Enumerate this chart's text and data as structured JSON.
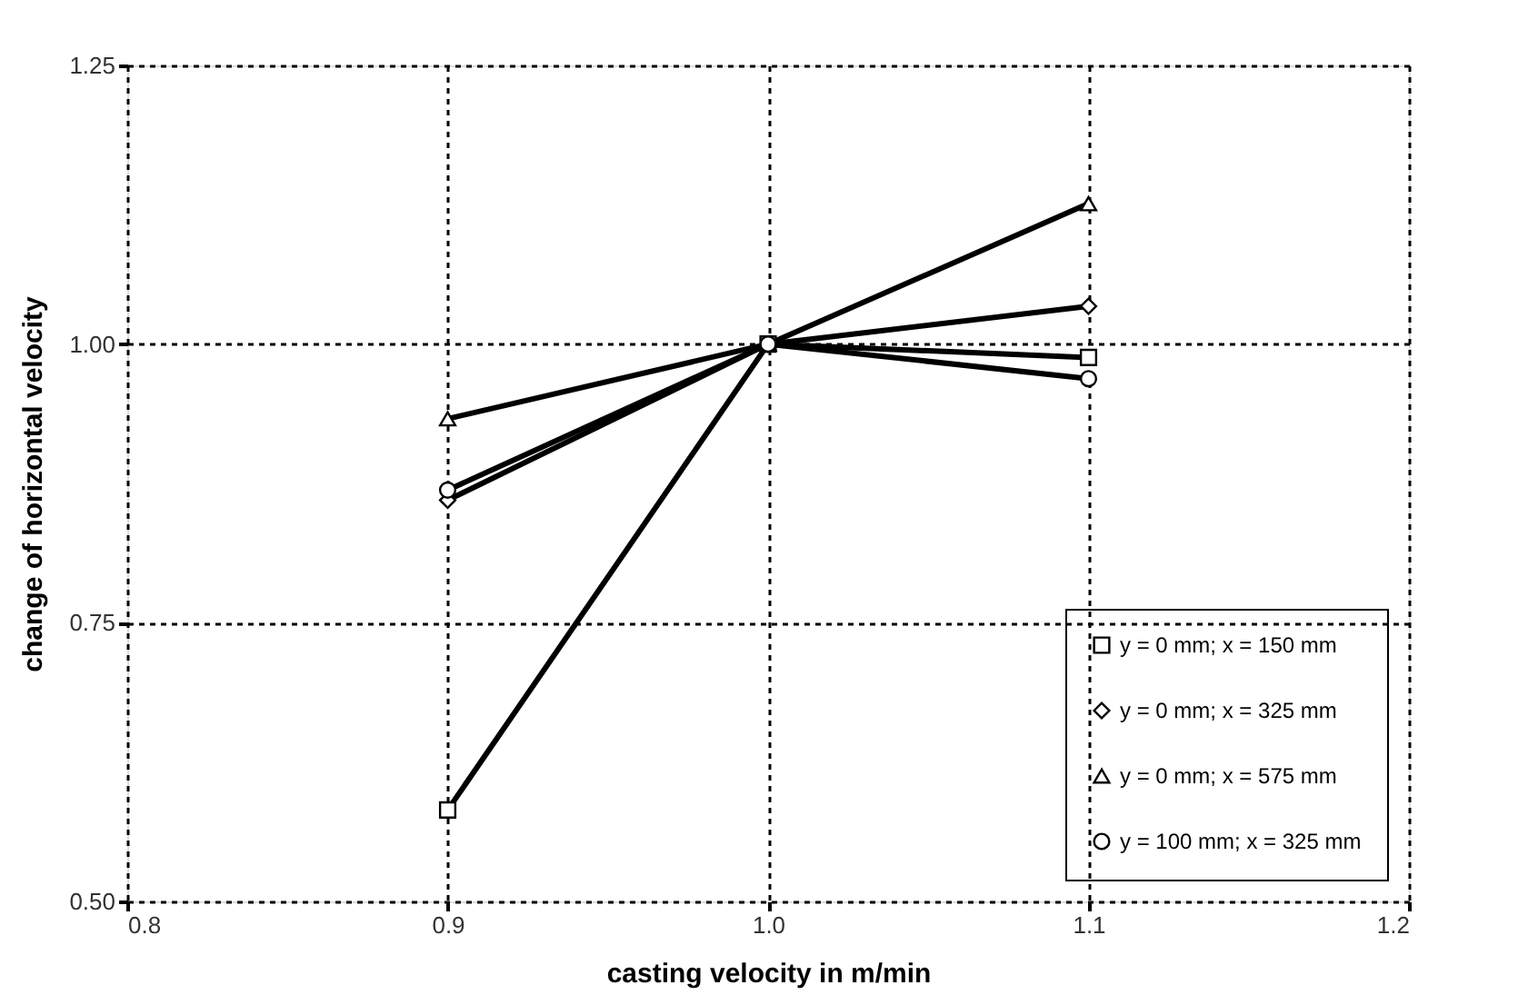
{
  "chart_data": {
    "type": "line",
    "xlabel": "casting velocity in m/min",
    "ylabel": "change of horizontal velocity",
    "x": [
      0.9,
      1.0,
      1.1
    ],
    "xlim": [
      0.8,
      1.2
    ],
    "xticks": [
      {
        "value": 0.8,
        "label": "0.8"
      },
      {
        "value": 0.9,
        "label": "0.9"
      },
      {
        "value": 1.0,
        "label": "1.0"
      },
      {
        "value": 1.1,
        "label": "1.1"
      },
      {
        "value": 1.2,
        "label": "1.2"
      }
    ],
    "ylim": [
      0.5,
      1.25
    ],
    "yticks": [
      {
        "value": 0.5,
        "label": "0.50"
      },
      {
        "value": 0.75,
        "label": "0.75"
      },
      {
        "value": 1.0,
        "label": "1.00"
      },
      {
        "value": 1.25,
        "label": "1.25"
      }
    ],
    "grid": true,
    "legend": "bottom right",
    "line_style": "solid",
    "series": [
      {
        "name": "y = 0 mm; x = 150 mm",
        "color": "#000000",
        "marker": "square",
        "values": [
          0.582,
          1.0,
          0.988
        ]
      },
      {
        "name": "y = 0 mm; x = 325 mm",
        "color": "#000000",
        "marker": "diamond",
        "values": [
          0.86,
          1.0,
          1.034
        ]
      },
      {
        "name": "y = 0 mm; x = 575 mm",
        "color": "#000000",
        "marker": "triangle",
        "values": [
          0.933,
          1.0,
          1.126
        ]
      },
      {
        "name": "y = 100 mm; x = 325 mm",
        "color": "#000000",
        "marker": "circle",
        "values": [
          0.869,
          1.0,
          0.969
        ]
      }
    ]
  }
}
